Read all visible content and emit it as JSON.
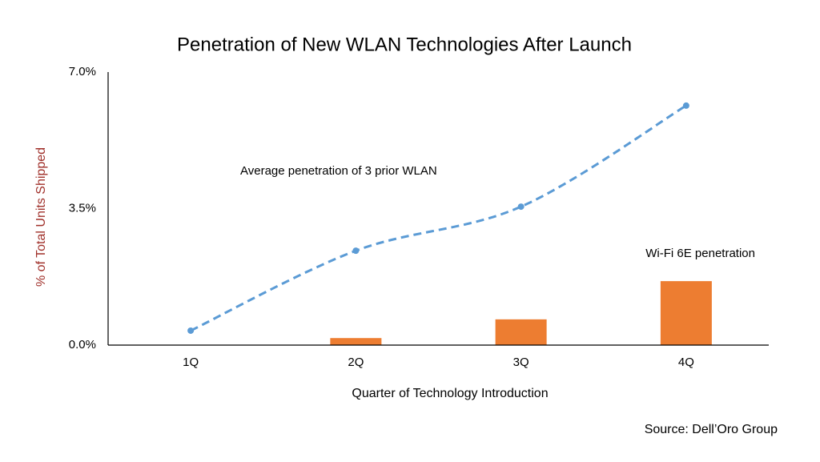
{
  "chart_data": {
    "type": "bar-line",
    "title": "Penetration of New WLAN Technologies After Launch",
    "x_label": "Quarter of Technology Introduction",
    "y_label": "% of Total Units Shipped",
    "source": "Source: Dell’Oro Group",
    "categories": [
      "1Q",
      "2Q",
      "3Q",
      "4Q"
    ],
    "series": [
      {
        "name": "Wi-Fi 6E penetration",
        "type": "bar",
        "color": "#ED7D31",
        "values": [
          0,
          0.18,
          0.66,
          1.64
        ]
      },
      {
        "name": "Average penetration of 3 prior WLAN",
        "type": "line",
        "color": "#5B9BD5",
        "dashed": true,
        "values": [
          0.37,
          2.42,
          3.55,
          6.14
        ]
      }
    ],
    "ylim": [
      0,
      7
    ],
    "yticks": [
      {
        "value": 0,
        "label": "0.0%"
      },
      {
        "value": 3.5,
        "label": "3.5%"
      },
      {
        "value": 7,
        "label": "7.0%"
      }
    ],
    "grid": false
  }
}
